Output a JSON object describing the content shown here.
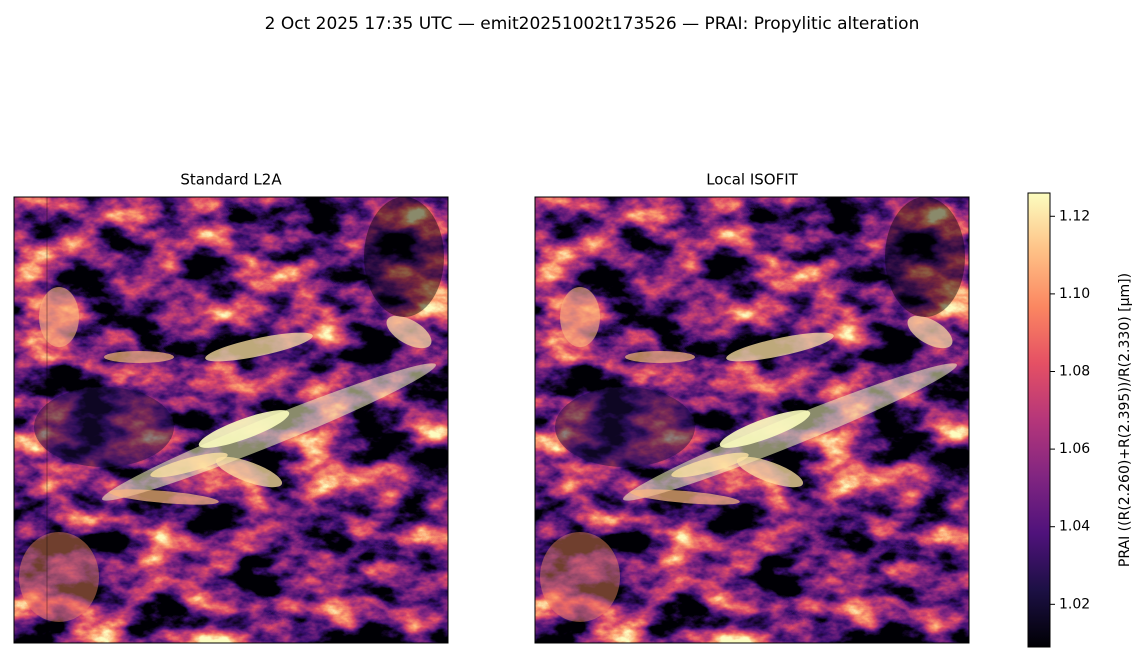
{
  "chart_data": {
    "type": "image",
    "title": "2 Oct 2025 17:35 UTC — emit20251002t173526 — PRAI: Propylitic alteration",
    "panels": [
      {
        "title": "Standard L2A"
      },
      {
        "title": "Local ISOFIT"
      }
    ],
    "colorbar": {
      "label": "PRAI  ((R(2.260)+R(2.395))/R(2.330)  [µm])",
      "colormap": "magma",
      "lim": [
        1.009,
        1.126
      ],
      "ticks": [
        {
          "value": 1.02,
          "label": "1.02"
        },
        {
          "value": 1.04,
          "label": "1.04"
        },
        {
          "value": 1.06,
          "label": "1.06"
        },
        {
          "value": 1.08,
          "label": "1.08"
        },
        {
          "value": 1.1,
          "label": "1.10"
        },
        {
          "value": 1.12,
          "label": "1.12"
        }
      ]
    }
  }
}
